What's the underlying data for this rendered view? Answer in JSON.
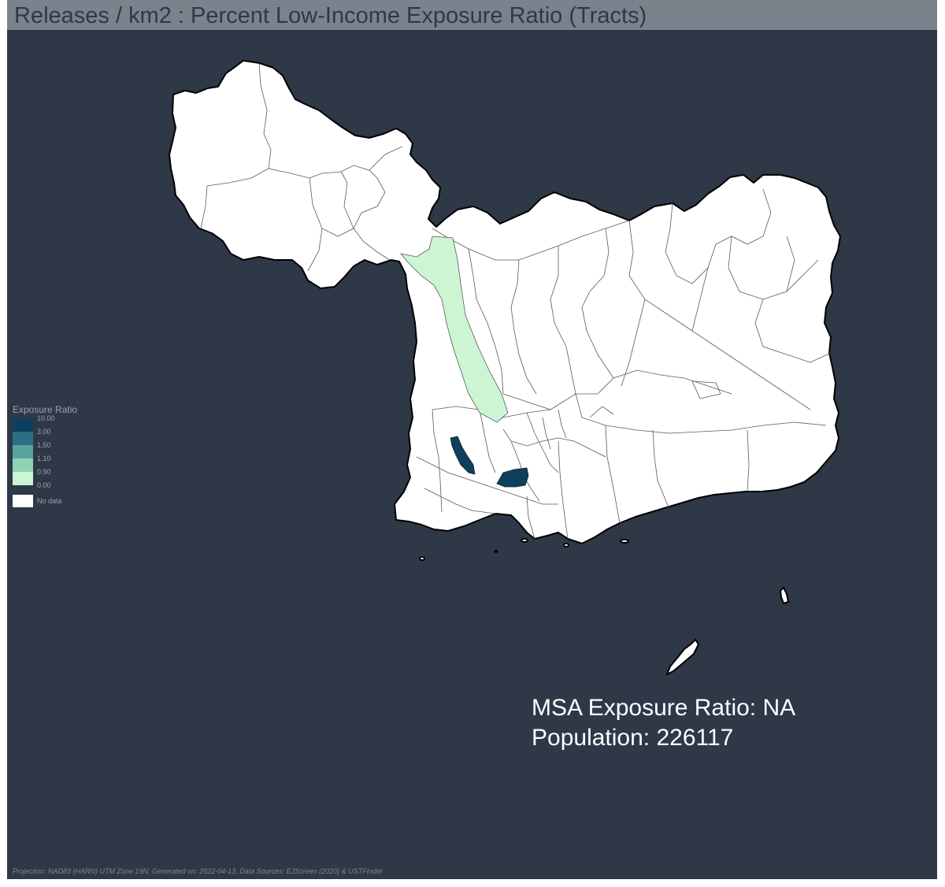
{
  "title": "Releases / km2 : Percent Low-Income Exposure Ratio (Tracts)",
  "legend": {
    "title": "Exposure Ratio",
    "classes": [
      {
        "label": "10.00",
        "color": "#0d3f5e"
      },
      {
        "label": "3.00",
        "color": "#2a6f84"
      },
      {
        "label": "1.50",
        "color": "#5aa39c"
      },
      {
        "label": "1.10",
        "color": "#8fd2b3"
      },
      {
        "label": "0.90",
        "color": "#cdf5d3"
      }
    ],
    "min_label": "0.00",
    "no_data_label": "No data",
    "no_data_color": "#ffffff"
  },
  "stats": {
    "msa_line": "MSA Exposure Ratio: NA",
    "population_line": "Population: 226117"
  },
  "footer": "Projection: NAD83 (HARN) UTM Zone 19N, Generated on: 2022-04-13, Data Sources: EJScreen (2020) & USTFinder",
  "colors": {
    "background": "#2e3847",
    "title_bar": "#7b828c",
    "no_data_fill": "#ffffff",
    "tract_border": "#5a5a5a"
  }
}
